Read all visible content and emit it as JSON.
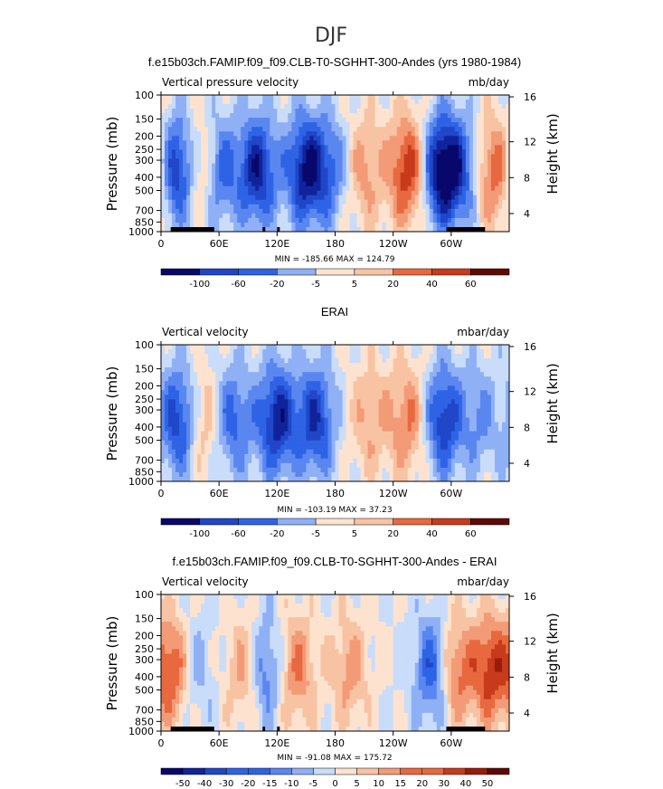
{
  "figure": {
    "season": "DJF"
  },
  "colors": {
    "levels": [
      "#08076b",
      "#10239b",
      "#1f47c8",
      "#2f63e6",
      "#5a86f0",
      "#8fb0f5",
      "#c9dcfa",
      "#fde3cf",
      "#f8c3a3",
      "#f39a76",
      "#e8683f",
      "#c83a1c",
      "#9a1a0c",
      "#5e0a04"
    ]
  },
  "chart_data": [
    {
      "type": "heatmap",
      "title": "f.e15b03ch.FAMIP.f09_f09.CLB-T0-SGHHT-300-Andes (yrs 1980-1984)",
      "left_label": "Vertical pressure velocity",
      "units": "mb/day",
      "ylabel": "Pressure (mb)",
      "y2label": "Height (km)",
      "x_ticks": [
        "0",
        "60E",
        "120E",
        "180",
        "120W",
        "60W"
      ],
      "y_ticks": [
        "100",
        "150",
        "200",
        "250",
        "300",
        "400",
        "500",
        "700",
        "850",
        "1000"
      ],
      "y2_ticks": [
        "16",
        "12",
        "8",
        "4"
      ],
      "minmax": "MIN = -185.66   MAX = 124.79",
      "colorbar": [
        "-100",
        "-60",
        "-20",
        "-5",
        "5",
        "20",
        "40",
        "60"
      ],
      "x_range": [
        0,
        360
      ],
      "y_range": [
        100,
        1000
      ],
      "mode": "model",
      "features": [
        {
          "x": 20,
          "strength": -0.9
        },
        {
          "x": 38,
          "strength": 0.6
        },
        {
          "x": 60,
          "strength": -0.55
        },
        {
          "x": 100,
          "strength": -0.8
        },
        {
          "x": 150,
          "strength": -0.85
        },
        {
          "x": 175,
          "strength": -0.4
        },
        {
          "x": 210,
          "strength": 0.35
        },
        {
          "x": 255,
          "strength": 0.7
        },
        {
          "x": 290,
          "strength": -0.95
        },
        {
          "x": 310,
          "strength": -0.45
        },
        {
          "x": 345,
          "strength": 0.55
        }
      ]
    },
    {
      "type": "heatmap",
      "title": "ERAI",
      "left_label": "Vertical velocity",
      "units": "mbar/day",
      "ylabel": "Pressure (mb)",
      "y2label": "Height (km)",
      "x_ticks": [
        "0",
        "60E",
        "120E",
        "180",
        "120W",
        "60W"
      ],
      "y_ticks": [
        "100",
        "150",
        "200",
        "250",
        "300",
        "400",
        "500",
        "700",
        "850",
        "1000"
      ],
      "y2_ticks": [
        "16",
        "12",
        "8",
        "4"
      ],
      "minmax": "MIN = -103.19   MAX =  37.23",
      "colorbar": [
        "-100",
        "-60",
        "-20",
        "-5",
        "5",
        "20",
        "40",
        "60"
      ],
      "x_range": [
        0,
        360
      ],
      "y_range": [
        100,
        1000
      ],
      "mode": "obs",
      "features": [
        {
          "x": 20,
          "strength": -0.75
        },
        {
          "x": 40,
          "strength": 0.4
        },
        {
          "x": 75,
          "strength": -0.5
        },
        {
          "x": 120,
          "strength": -0.8
        },
        {
          "x": 160,
          "strength": -0.7
        },
        {
          "x": 215,
          "strength": 0.3
        },
        {
          "x": 255,
          "strength": 0.45
        },
        {
          "x": 292,
          "strength": -0.7
        },
        {
          "x": 330,
          "strength": -0.3
        }
      ]
    },
    {
      "type": "heatmap",
      "title": "f.e15b03ch.FAMIP.f09_f09.CLB-T0-SGHHT-300-Andes - ERAI",
      "left_label": "Vertical velocity",
      "units": "mbar/day",
      "ylabel": "Pressure (mb)",
      "y2label": "Height (km)",
      "x_ticks": [
        "0",
        "60E",
        "120E",
        "180",
        "120W",
        "60W"
      ],
      "y_ticks": [
        "100",
        "150",
        "200",
        "250",
        "300",
        "400",
        "500",
        "700",
        "850",
        "1000"
      ],
      "y2_ticks": [
        "16",
        "12",
        "8",
        "4"
      ],
      "minmax": "MIN = -91.08   MAX = 175.72",
      "colorbar": [
        "-50",
        "-40",
        "-30",
        "-20",
        "-15",
        "-10",
        "-5",
        "0",
        "5",
        "10",
        "15",
        "20",
        "30",
        "40",
        "50"
      ],
      "x_range": [
        0,
        360
      ],
      "y_range": [
        100,
        1000
      ],
      "mode": "diff",
      "features": [
        {
          "x": 15,
          "strength": 0.7
        },
        {
          "x": 30,
          "strength": -0.4
        },
        {
          "x": 90,
          "strength": 0.5
        },
        {
          "x": 105,
          "strength": -0.6
        },
        {
          "x": 140,
          "strength": 0.45
        },
        {
          "x": 195,
          "strength": 0.35
        },
        {
          "x": 285,
          "strength": -0.8
        },
        {
          "x": 300,
          "strength": 0.75
        },
        {
          "x": 340,
          "strength": 0.65
        }
      ]
    }
  ]
}
